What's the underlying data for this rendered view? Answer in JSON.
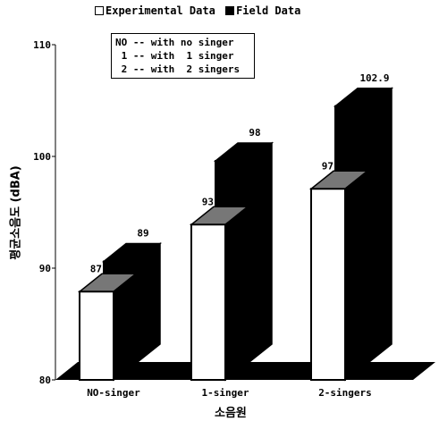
{
  "chart_data": {
    "type": "bar",
    "categories": [
      "NO-singer",
      "1-singer",
      "2-singers"
    ],
    "series": [
      {
        "name": "Experimental Data",
        "values": [
          87.9,
          93.9,
          97.1
        ],
        "color": "#ffffff"
      },
      {
        "name": "Field Data",
        "values": [
          89,
          98,
          102.9
        ],
        "color": "#000000"
      }
    ],
    "value_labels": [
      [
        "87.9",
        "93.9",
        "97.1"
      ],
      [
        "89",
        "98",
        "102.9"
      ]
    ],
    "ylabel": "평균소음도 (dBA)",
    "xlabel": "소음원",
    "ylim": [
      80,
      110
    ],
    "yticks": [
      "80",
      "90",
      "100",
      "110"
    ],
    "legend_placement": "top",
    "grid": false,
    "three_d": true,
    "notes": [
      "NO -- with no singer",
      " 1 -- with  1 singer",
      " 2 -- with  2 singers"
    ]
  }
}
